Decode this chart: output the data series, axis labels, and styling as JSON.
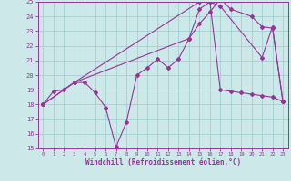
{
  "xlabel": "Windchill (Refroidissement éolien,°C)",
  "bg_color": "#cce8e8",
  "grid_color": "#99cccc",
  "line_color": "#993399",
  "xlim": [
    -0.5,
    23.5
  ],
  "ylim": [
    15,
    25
  ],
  "xticks": [
    0,
    1,
    2,
    3,
    4,
    5,
    6,
    7,
    8,
    9,
    10,
    11,
    12,
    13,
    14,
    15,
    16,
    17,
    18,
    19,
    20,
    21,
    22,
    23
  ],
  "yticks": [
    15,
    16,
    17,
    18,
    19,
    20,
    21,
    22,
    23,
    24,
    25
  ],
  "line1_x": [
    0,
    1,
    2,
    3,
    4,
    5,
    6,
    7,
    8,
    9,
    10,
    11,
    12,
    13,
    14,
    15,
    16,
    17,
    18,
    19,
    20,
    21,
    22,
    23
  ],
  "line1_y": [
    18.0,
    18.9,
    19.0,
    19.5,
    19.5,
    18.8,
    17.8,
    15.1,
    16.8,
    20.0,
    20.5,
    21.1,
    20.5,
    21.1,
    22.5,
    24.5,
    25.0,
    19.0,
    18.9,
    18.8,
    18.7,
    18.6,
    18.5,
    18.2
  ],
  "line2_x": [
    0,
    3,
    15,
    16,
    17,
    21,
    22,
    23
  ],
  "line2_y": [
    18.0,
    19.5,
    25.0,
    25.0,
    24.7,
    21.2,
    23.3,
    18.2
  ],
  "line3_x": [
    0,
    3,
    14,
    15,
    16,
    17,
    18,
    20,
    21,
    22,
    23
  ],
  "line3_y": [
    18.0,
    19.5,
    22.5,
    23.5,
    24.3,
    25.2,
    24.5,
    24.0,
    23.3,
    23.2,
    18.2
  ]
}
